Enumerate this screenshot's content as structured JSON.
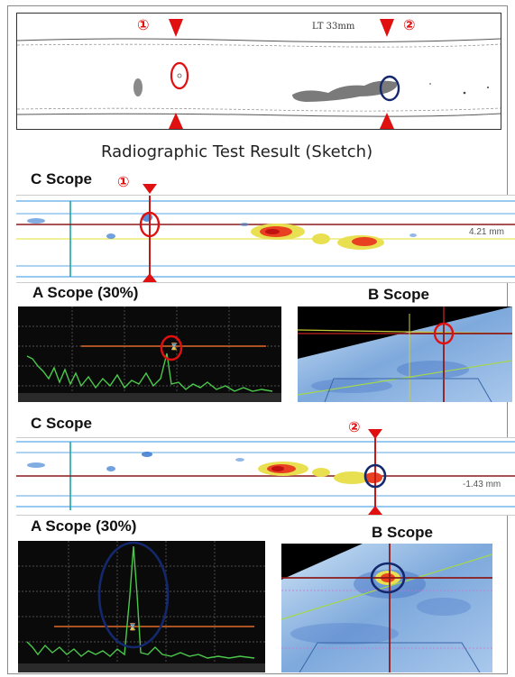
{
  "sketch": {
    "caption": "Radiographic Test Result (Sketch)",
    "handwritten_note": "LT 33mm",
    "marker_1": "①",
    "marker_2": "②"
  },
  "panel1": {
    "c_scope_label": "C Scope",
    "marker": "①",
    "reading": "4.21 mm",
    "a_scope_label": "A Scope (30%)",
    "b_scope_label": "B Scope"
  },
  "panel2": {
    "c_scope_label": "C Scope",
    "marker": "②",
    "reading": "-1.43 mm",
    "a_scope_label": "A Scope (30%)",
    "b_scope_label": "B Scope"
  },
  "colors": {
    "marker_red": "#e01010",
    "circle_blue": "#14286e",
    "cursor_line": "#8b1a1a",
    "signal_green": "#4bc94b"
  }
}
